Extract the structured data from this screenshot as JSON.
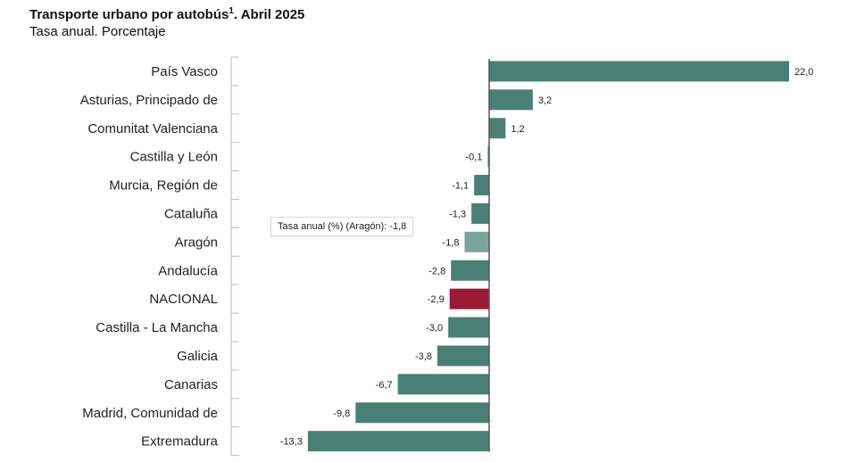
{
  "header": {
    "title": "Transporte urbano por autobús",
    "title_sup": "1",
    "title_suffix": ". Abril 2025",
    "subtitle": "Tasa anual. Porcentaje"
  },
  "tooltip": {
    "text": "Tasa anual (%) (Aragón): -1,8"
  },
  "colors": {
    "bar": "#4a8074",
    "bar_hover": "#7ba49a",
    "national": "#9b1b37",
    "axis": "#555555"
  },
  "chart_data": {
    "type": "bar",
    "orientation": "horizontal",
    "title": "Transporte urbano por autobús¹. Abril 2025",
    "subtitle": "Tasa anual. Porcentaje",
    "categories": [
      "País Vasco",
      "Asturias, Principado de",
      "Comunitat Valenciana",
      "Castilla y León",
      "Murcia, Región de",
      "Cataluña",
      "Aragón",
      "Andalucía",
      "NACIONAL",
      "Castilla - La Mancha",
      "Galicia",
      "Canarias",
      "Madrid, Comunidad de",
      "Extremadura"
    ],
    "values": [
      22.0,
      3.2,
      1.2,
      -0.1,
      -1.1,
      -1.3,
      -1.8,
      -2.8,
      -2.9,
      -3.0,
      -3.8,
      -6.7,
      -9.8,
      -13.3
    ],
    "value_labels": [
      "22,0",
      "3,2",
      "1,2",
      "-0,1",
      "-1,1",
      "-1,3",
      "-1,8",
      "-2,8",
      "-2,9",
      "-3,0",
      "-3,8",
      "-6,7",
      "-9,8",
      "-13,3"
    ],
    "highlight": "NACIONAL",
    "hovered": "Aragón",
    "xlim": [
      -13.3,
      22.0
    ],
    "grid": false,
    "legend": "none"
  }
}
